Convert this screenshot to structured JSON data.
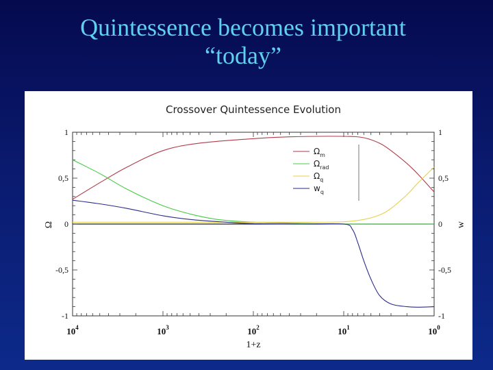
{
  "slide": {
    "title_line1": "Quintessence becomes important",
    "title_line2": "“today”"
  },
  "chart_data": {
    "type": "line",
    "title": "Crossover Quintessence Evolution",
    "xlabel": "1+z",
    "ylabel_left": "Ω",
    "ylabel_right": "w",
    "x_scale": "log-reversed",
    "xlim": [
      10000,
      1
    ],
    "ylim": [
      -1,
      1
    ],
    "x_ticks": [
      {
        "value": 10000,
        "base": "10",
        "exp": "4"
      },
      {
        "value": 1000,
        "base": "10",
        "exp": "3"
      },
      {
        "value": 100,
        "base": "10",
        "exp": "2"
      },
      {
        "value": 10,
        "base": "10",
        "exp": "1"
      },
      {
        "value": 1,
        "base": "10",
        "exp": "0"
      }
    ],
    "y_ticks": [
      {
        "value": 1,
        "label": "1"
      },
      {
        "value": 0.5,
        "label": "0,5"
      },
      {
        "value": 0,
        "label": "0"
      },
      {
        "value": -0.5,
        "label": "-0,5"
      },
      {
        "value": -1,
        "label": "-1"
      }
    ],
    "legend_position": "top-right inside",
    "series": [
      {
        "name": "Ω",
        "sub": "m",
        "color": "#b03a48",
        "points": [
          [
            10000,
            0.27
          ],
          [
            5000,
            0.45
          ],
          [
            2500,
            0.62
          ],
          [
            1000,
            0.8
          ],
          [
            400,
            0.88
          ],
          [
            100,
            0.93
          ],
          [
            40,
            0.95
          ],
          [
            10,
            0.955
          ],
          [
            6,
            0.94
          ],
          [
            4,
            0.88
          ],
          [
            3,
            0.8
          ],
          [
            2,
            0.66
          ],
          [
            1.5,
            0.54
          ],
          [
            1,
            0.35
          ]
        ]
      },
      {
        "name": "Ω",
        "sub": "rad",
        "color": "#44cc44",
        "points": [
          [
            10000,
            0.7
          ],
          [
            5000,
            0.55
          ],
          [
            2500,
            0.38
          ],
          [
            1000,
            0.2
          ],
          [
            500,
            0.11
          ],
          [
            250,
            0.05
          ],
          [
            100,
            0.02
          ],
          [
            40,
            0.01
          ],
          [
            10,
            0.0
          ],
          [
            1,
            0.0
          ]
        ]
      },
      {
        "name": "Ω",
        "sub": "q",
        "color": "#e6d24a",
        "points": [
          [
            10000,
            0.02
          ],
          [
            1000,
            0.02
          ],
          [
            100,
            0.02
          ],
          [
            20,
            0.02
          ],
          [
            10,
            0.025
          ],
          [
            6,
            0.05
          ],
          [
            4,
            0.1
          ],
          [
            3,
            0.17
          ],
          [
            2,
            0.32
          ],
          [
            1.5,
            0.45
          ],
          [
            1,
            0.62
          ]
        ]
      },
      {
        "name": "w",
        "sub": "q",
        "color": "#2a2a8a",
        "points": [
          [
            10000,
            0.26
          ],
          [
            5000,
            0.22
          ],
          [
            2500,
            0.17
          ],
          [
            1000,
            0.09
          ],
          [
            500,
            0.05
          ],
          [
            200,
            0.02
          ],
          [
            100,
            0.005
          ],
          [
            30,
            0.0
          ],
          [
            10,
            0.0
          ],
          [
            8,
            -0.06
          ],
          [
            7,
            -0.2
          ],
          [
            6,
            -0.4
          ],
          [
            5,
            -0.6
          ],
          [
            4,
            -0.78
          ],
          [
            3,
            -0.87
          ],
          [
            2,
            -0.9
          ],
          [
            1.5,
            -0.905
          ],
          [
            1,
            -0.9
          ]
        ]
      }
    ]
  }
}
